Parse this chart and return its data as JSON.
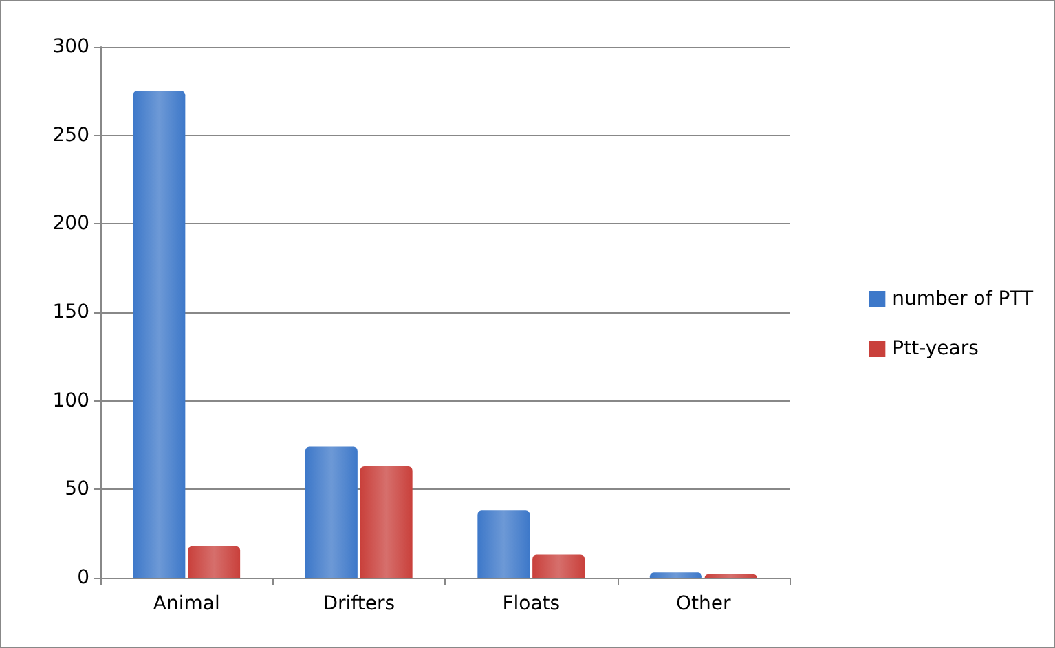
{
  "chart_data": {
    "type": "bar",
    "categories": [
      "Animal",
      "Drifters",
      "Floats",
      "Other"
    ],
    "series": [
      {
        "name": "number of PTT",
        "color": "#3d78c9",
        "values": [
          275,
          74,
          38,
          3
        ]
      },
      {
        "name": "Ptt-years",
        "color": "#c9403b",
        "values": [
          18,
          63,
          13,
          2
        ]
      }
    ],
    "ylim": [
      0,
      300
    ],
    "yticks": [
      0,
      50,
      100,
      150,
      200,
      250,
      300
    ],
    "grid": "y",
    "legend": "right"
  }
}
